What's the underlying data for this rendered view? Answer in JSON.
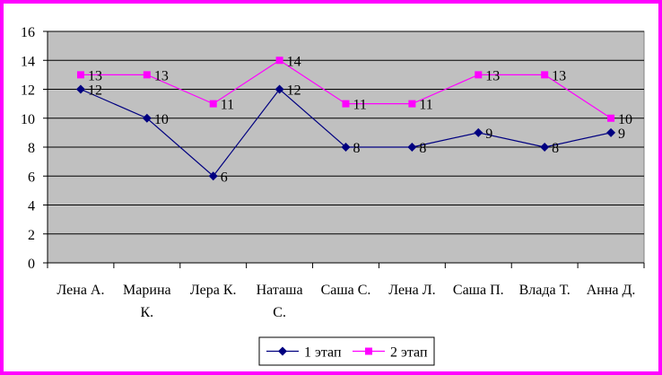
{
  "chart_data": {
    "type": "line",
    "categories": [
      [
        "Лена А."
      ],
      [
        "Марина",
        "К."
      ],
      [
        "Лера К."
      ],
      [
        "Наташа",
        "С."
      ],
      [
        "Саша С."
      ],
      [
        "Лена Л."
      ],
      [
        "Саша П."
      ],
      [
        "Влада Т."
      ],
      [
        "Анна Д."
      ]
    ],
    "ylim": [
      0,
      16
    ],
    "yticks": [
      0,
      2,
      4,
      6,
      8,
      10,
      12,
      14,
      16
    ],
    "grid": true,
    "legend_position": "bottom",
    "plot_background": "#c0c0c0",
    "frame_color": "#ff00ff",
    "series": [
      {
        "name": "1 этап",
        "values": [
          12,
          10,
          6,
          12,
          8,
          8,
          9,
          8,
          9
        ],
        "color": "#000080",
        "marker": "diamond"
      },
      {
        "name": "2 этап",
        "values": [
          13,
          13,
          11,
          14,
          11,
          11,
          13,
          13,
          10
        ],
        "color": "#ff00ff",
        "marker": "square"
      }
    ]
  }
}
